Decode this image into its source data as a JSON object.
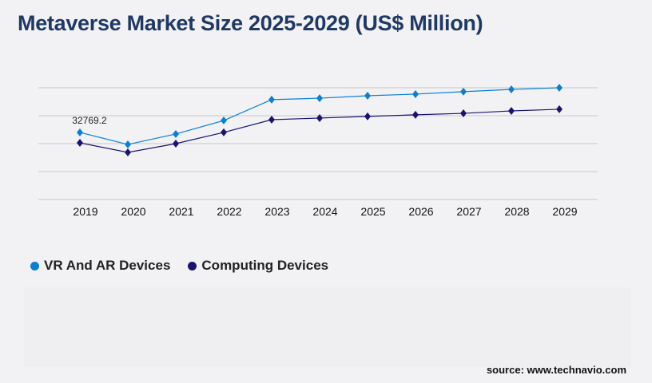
{
  "title": "Metaverse Market Size 2025-2029 (US$ Million)",
  "source": "source: www.technavio.com",
  "chart_data": {
    "type": "line",
    "title": "Metaverse Market Size 2025-2029 (US$ Million)",
    "x": [
      "2019",
      "2020",
      "2021",
      "2022",
      "2023",
      "2024",
      "2025",
      "2026",
      "2027",
      "2028",
      "2029"
    ],
    "series": [
      {
        "name": "VR And AR Devices",
        "color": "#0a7fd4",
        "values": [
          32769.2,
          26900,
          32000,
          38600,
          48800,
          49500,
          50700,
          51500,
          52700,
          53800,
          54600
        ]
      },
      {
        "name": "Computing Devices",
        "color": "#1a1470",
        "values": [
          27700,
          23000,
          27300,
          32800,
          39000,
          39800,
          40600,
          41400,
          42100,
          43300,
          44100
        ]
      }
    ],
    "annotations": [
      {
        "series": 0,
        "x": "2019",
        "text": "32769.2"
      }
    ],
    "ylim": [
      0,
      54600
    ],
    "grid": true,
    "legend": "bottom-left",
    "xlabel": "",
    "ylabel": ""
  }
}
